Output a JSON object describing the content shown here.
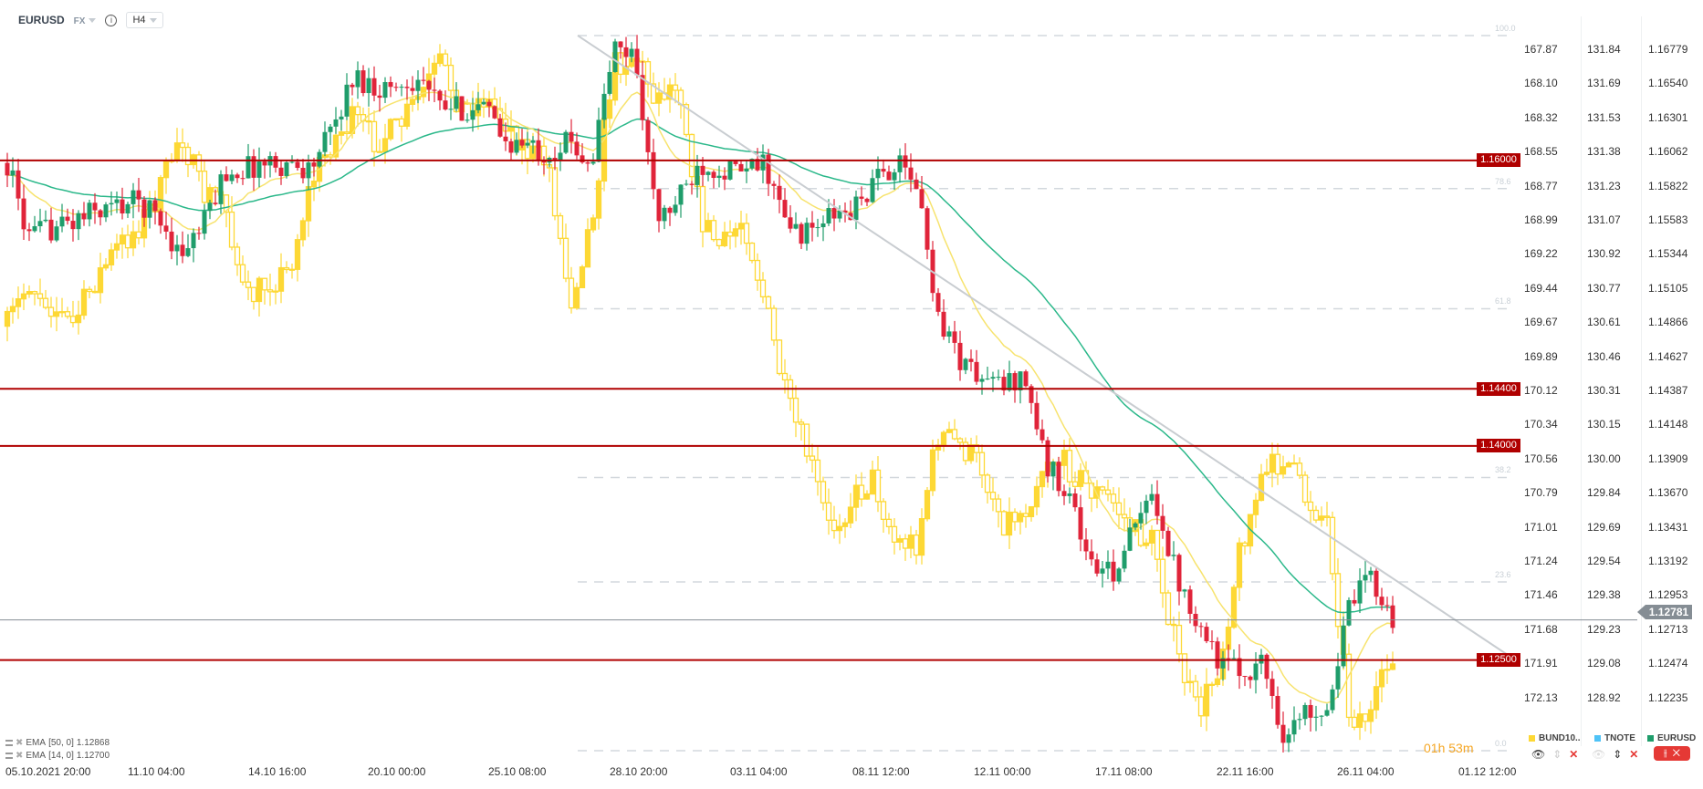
{
  "header": {
    "symbol": "EURUSD",
    "market": "FX",
    "timeframe": "H4",
    "info_icon": "info-icon"
  },
  "colors": {
    "up": "#1f9d6b",
    "down": "#e0243a",
    "bund": "#fdd835",
    "ema50": "#2bb88a",
    "ema14": "#f7e36e",
    "level": "#b00000",
    "fib": "#d3d8dd",
    "trend": "#c9cdd1",
    "current": "#858d94"
  },
  "chart_data": {
    "type": "candlestick",
    "series": [
      {
        "name": "EURUSD",
        "axis": "right",
        "path": [
          1.15983,
          1.15451,
          1.15527,
          1.15565,
          1.15641,
          1.15679,
          1.15717,
          1.15603,
          1.15337,
          1.15527,
          1.15907,
          1.15945,
          1.15983,
          1.15968,
          1.15945,
          1.16212,
          1.16592,
          1.16516,
          1.16516,
          1.16592,
          1.16364,
          1.16364,
          1.16364,
          1.16135,
          1.16097,
          1.16059,
          1.16135,
          1.15983,
          1.16782,
          1.16744,
          1.15565,
          1.15717,
          1.15983,
          1.15945,
          1.15907,
          1.15983,
          1.15527,
          1.15489,
          1.15603,
          1.15641,
          1.15831,
          1.15983,
          1.15831,
          1.14919,
          1.14615,
          1.14463,
          1.14425,
          1.14501,
          1.13854,
          1.13702,
          1.1317,
          1.13094,
          1.13398,
          1.13664,
          1.13094,
          1.1279,
          1.12486,
          1.1241,
          1.12486,
          1.11953,
          1.12143,
          1.12181,
          1.12866,
          1.13094,
          1.1279
        ]
      },
      {
        "name": "BUND10..",
        "axis": "left",
        "path": [
          169.69,
          169.4,
          169.54,
          169.69,
          169.4,
          169.19,
          169.04,
          168.83,
          168.4,
          168.83,
          168.83,
          169.54,
          169.4,
          169.33,
          168.76,
          168.47,
          168.33,
          168.47,
          168.4,
          168.19,
          167.97,
          168.26,
          168.19,
          168.33,
          168.54,
          168.62,
          169.54,
          168.97,
          167.97,
          167.9,
          168.19,
          168.05,
          168.97,
          169.19,
          168.97,
          169.54,
          170.19,
          170.54,
          171.04,
          170.83,
          170.69,
          171.11,
          171.11,
          170.4,
          170.47,
          170.61,
          170.97,
          170.9,
          170.54,
          170.61,
          170.76,
          170.83,
          171.04,
          171.11,
          171.83,
          172.25,
          171.9,
          171.11,
          170.69,
          170.54,
          170.83,
          170.97,
          172.25,
          172.25,
          171.83
        ]
      },
      {
        "name": "TNOTE",
        "axis": "middle"
      }
    ],
    "indicators": [
      {
        "label": "EMA",
        "params": "[50, 0]",
        "value": "1.12868"
      },
      {
        "label": "EMA",
        "params": "[14, 0]",
        "value": "1.12700"
      }
    ],
    "axes": {
      "left": [
        "167.87",
        "168.10",
        "168.32",
        "168.55",
        "168.77",
        "168.99",
        "169.22",
        "169.44",
        "169.67",
        "169.89",
        "170.12",
        "170.34",
        "170.56",
        "170.79",
        "171.01",
        "171.24",
        "171.46",
        "171.68",
        "171.91",
        "172.13"
      ],
      "middle": [
        "131.84",
        "131.69",
        "131.53",
        "131.38",
        "131.23",
        "131.07",
        "130.92",
        "130.77",
        "130.61",
        "130.46",
        "130.31",
        "130.15",
        "130.00",
        "129.84",
        "129.69",
        "129.54",
        "129.38",
        "129.23",
        "129.08",
        "128.92"
      ],
      "right": [
        "1.16779",
        "1.16540",
        "1.16301",
        "1.16062",
        "1.15822",
        "1.15583",
        "1.15344",
        "1.15105",
        "1.14866",
        "1.14627",
        "1.14387",
        "1.14148",
        "1.13909",
        "1.13670",
        "1.13431",
        "1.13192",
        "1.12953",
        "1.12713",
        "1.12474",
        "1.12235"
      ],
      "time": [
        "05.10.2021  20:00",
        "11.10  04:00",
        "14.10  16:00",
        "20.10  00:00",
        "25.10  08:00",
        "28.10  20:00",
        "03.11  04:00",
        "08.11  12:00",
        "12.11  00:00",
        "17.11  08:00",
        "22.11  16:00",
        "26.11  04:00",
        "01.12  12:00"
      ]
    },
    "levels": [
      {
        "price": 1.16,
        "label": "1.16000"
      },
      {
        "price": 1.144,
        "label": "1.14400"
      },
      {
        "price": 1.14,
        "label": "1.14000"
      },
      {
        "price": 1.125,
        "label": "1.12500"
      }
    ],
    "current_price": {
      "price": 1.12781,
      "label": "1.12781"
    },
    "fibonacci": {
      "high": 1.16875,
      "low": 1.11865,
      "ratios": [
        {
          "r": 1.0,
          "label": "100.0"
        },
        {
          "r": 0.786,
          "label": "78.6"
        },
        {
          "r": 0.618,
          "label": "61.8"
        },
        {
          "r": 0.382,
          "label": "38.2"
        },
        {
          "r": 0.236,
          "label": "23.6"
        },
        {
          "r": 0.0,
          "label": "0.0"
        }
      ]
    },
    "trendline": {
      "start_price": 1.16875,
      "end_price": 1.12523
    }
  },
  "legend": {
    "bund": "BUND10..",
    "tnote": "TNOTE",
    "eurusd": "EURUSD",
    "bund_color": "#fdd835",
    "tnote_color": "#4fc3f7",
    "eurusd_color": "#1f9d6b"
  },
  "countdown": "01h 53m"
}
